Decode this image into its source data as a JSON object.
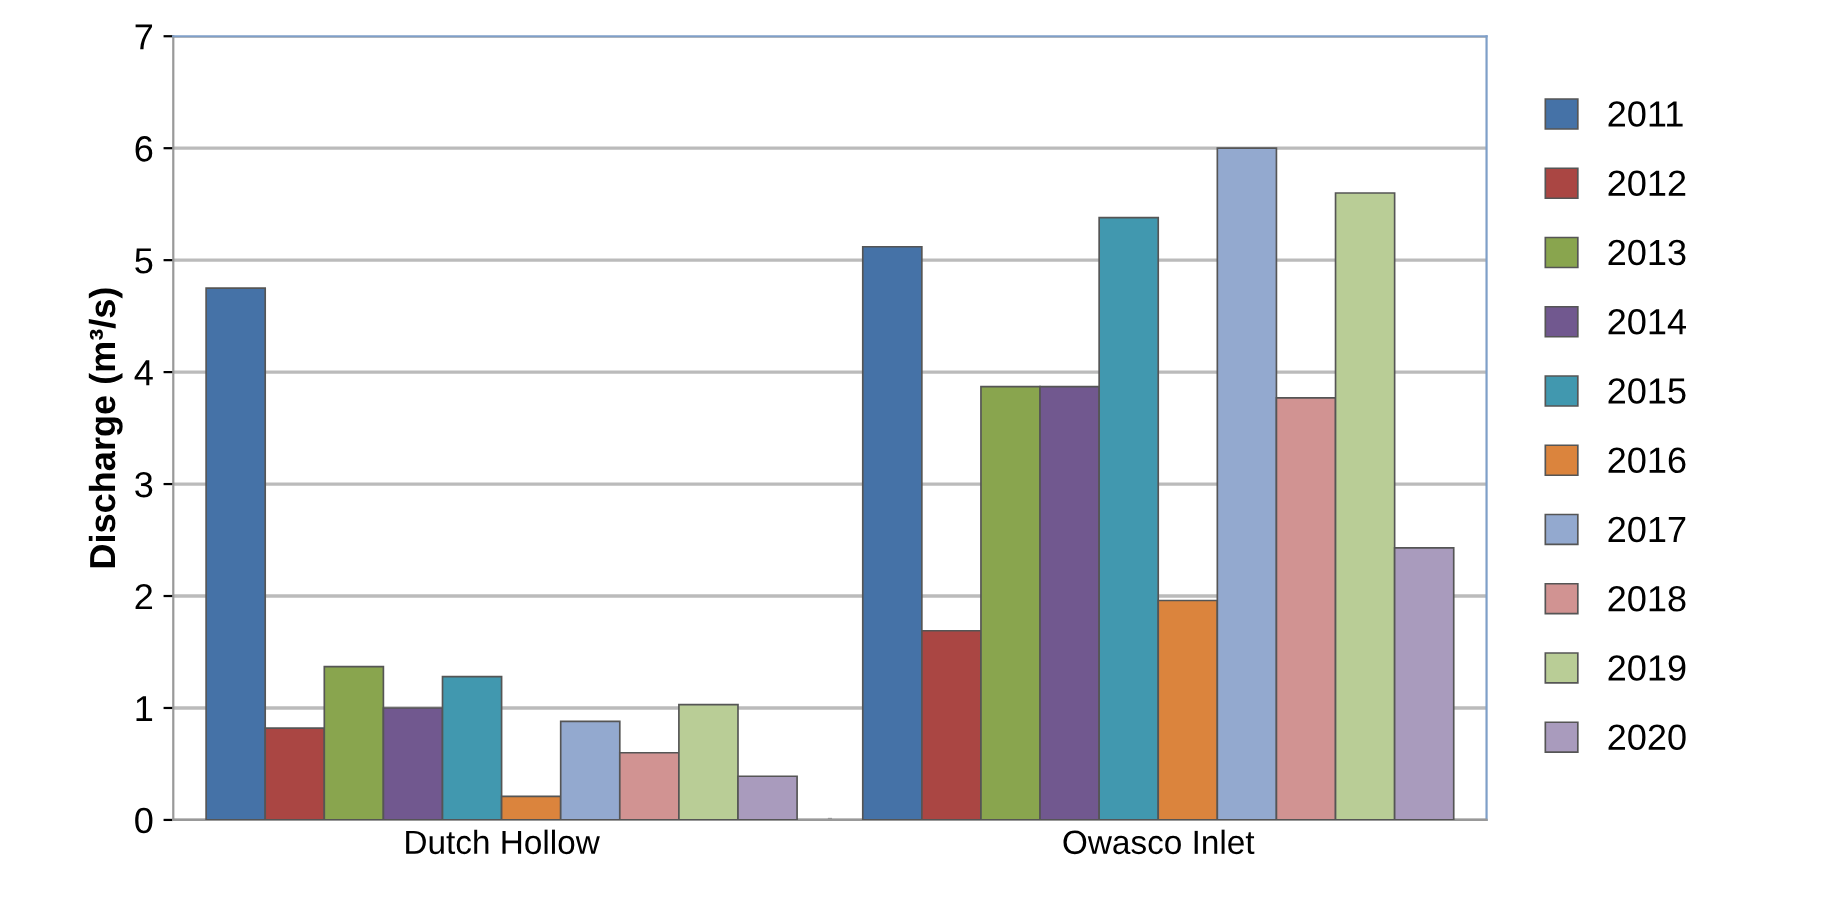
{
  "chart_data": {
    "type": "bar",
    "ylabel": "Discharge (m³/s)",
    "categories": [
      "Dutch Hollow",
      "Owasco Inlet"
    ],
    "series": [
      {
        "name": "2011",
        "color": "#4572a7",
        "values": [
          4.75,
          5.12
        ]
      },
      {
        "name": "2012",
        "color": "#aa4643",
        "values": [
          0.82,
          1.69
        ]
      },
      {
        "name": "2013",
        "color": "#89a54e",
        "values": [
          1.37,
          3.87
        ]
      },
      {
        "name": "2014",
        "color": "#71588f",
        "values": [
          1.0,
          3.87
        ]
      },
      {
        "name": "2015",
        "color": "#4198af",
        "values": [
          1.28,
          5.38
        ]
      },
      {
        "name": "2016",
        "color": "#db843d",
        "values": [
          0.21,
          1.96
        ]
      },
      {
        "name": "2017",
        "color": "#93a9cf",
        "values": [
          0.88,
          6.0
        ]
      },
      {
        "name": "2018",
        "color": "#d19392",
        "values": [
          0.6,
          3.77
        ]
      },
      {
        "name": "2019",
        "color": "#b9cd96",
        "values": [
          1.03,
          5.6
        ]
      },
      {
        "name": "2020",
        "color": "#a99bbd",
        "values": [
          0.39,
          2.43
        ]
      }
    ],
    "ylim": [
      0,
      7
    ],
    "yticks": [
      0,
      1,
      2,
      3,
      4,
      5,
      6,
      7
    ],
    "grid": "y",
    "legend": "right"
  }
}
